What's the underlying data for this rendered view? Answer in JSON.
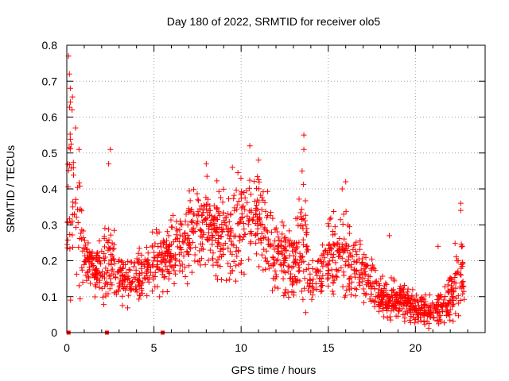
{
  "chart_data": {
    "type": "scatter",
    "title": "Day 180 of 2022, SRMTID for receiver olo5",
    "xlabel": "GPS time / hours",
    "ylabel": "SRMTID / TECUs",
    "xlim": [
      0,
      24
    ],
    "ylim": [
      0,
      0.8
    ],
    "xticks": [
      0,
      5,
      10,
      15,
      20
    ],
    "yticks": [
      0,
      0.1,
      0.2,
      0.3,
      0.4,
      0.5,
      0.6,
      0.7,
      0.8
    ],
    "grid": true,
    "marker": "plus",
    "color": "#ff0000",
    "zero_markers": [
      0.1,
      2.3,
      5.5
    ],
    "envelope": [
      {
        "x": 0.0,
        "mean": 0.22,
        "spread": 0.1
      },
      {
        "x": 0.1,
        "mean": 0.4,
        "spread": 0.18
      },
      {
        "x": 0.25,
        "mean": 0.45,
        "spread": 0.2
      },
      {
        "x": 0.5,
        "mean": 0.3,
        "spread": 0.15
      },
      {
        "x": 0.8,
        "mean": 0.33,
        "spread": 0.15
      },
      {
        "x": 1.0,
        "mean": 0.2,
        "spread": 0.06
      },
      {
        "x": 2.0,
        "mean": 0.16,
        "spread": 0.05
      },
      {
        "x": 2.4,
        "mean": 0.22,
        "spread": 0.12
      },
      {
        "x": 3.0,
        "mean": 0.14,
        "spread": 0.05
      },
      {
        "x": 4.0,
        "mean": 0.15,
        "spread": 0.05
      },
      {
        "x": 5.0,
        "mean": 0.19,
        "spread": 0.06
      },
      {
        "x": 6.0,
        "mean": 0.22,
        "spread": 0.07
      },
      {
        "x": 7.0,
        "mean": 0.27,
        "spread": 0.08
      },
      {
        "x": 8.0,
        "mean": 0.31,
        "spread": 0.09
      },
      {
        "x": 9.0,
        "mean": 0.27,
        "spread": 0.09
      },
      {
        "x": 10.0,
        "mean": 0.3,
        "spread": 0.1
      },
      {
        "x": 11.0,
        "mean": 0.31,
        "spread": 0.1
      },
      {
        "x": 12.0,
        "mean": 0.22,
        "spread": 0.08
      },
      {
        "x": 13.0,
        "mean": 0.17,
        "spread": 0.07
      },
      {
        "x": 13.6,
        "mean": 0.3,
        "spread": 0.14
      },
      {
        "x": 14.0,
        "mean": 0.13,
        "spread": 0.05
      },
      {
        "x": 15.0,
        "mean": 0.2,
        "spread": 0.07
      },
      {
        "x": 16.0,
        "mean": 0.22,
        "spread": 0.09
      },
      {
        "x": 17.0,
        "mean": 0.17,
        "spread": 0.06
      },
      {
        "x": 18.0,
        "mean": 0.1,
        "spread": 0.04
      },
      {
        "x": 19.0,
        "mean": 0.09,
        "spread": 0.04
      },
      {
        "x": 20.0,
        "mean": 0.07,
        "spread": 0.03
      },
      {
        "x": 21.0,
        "mean": 0.06,
        "spread": 0.03
      },
      {
        "x": 22.0,
        "mean": 0.09,
        "spread": 0.05
      },
      {
        "x": 22.6,
        "mean": 0.18,
        "spread": 0.1
      },
      {
        "x": 22.8,
        "mean": 0.12,
        "spread": 0.05
      }
    ],
    "peaks": [
      {
        "x": 0.1,
        "y": 0.77
      },
      {
        "x": 0.15,
        "y": 0.72
      },
      {
        "x": 0.2,
        "y": 0.68
      },
      {
        "x": 0.3,
        "y": 0.62
      },
      {
        "x": 0.5,
        "y": 0.57
      },
      {
        "x": 0.7,
        "y": 0.51
      },
      {
        "x": 2.5,
        "y": 0.51
      },
      {
        "x": 2.4,
        "y": 0.47
      },
      {
        "x": 10.5,
        "y": 0.52
      },
      {
        "x": 8.0,
        "y": 0.47
      },
      {
        "x": 9.5,
        "y": 0.46
      },
      {
        "x": 11.0,
        "y": 0.48
      },
      {
        "x": 13.6,
        "y": 0.55
      },
      {
        "x": 13.6,
        "y": 0.51
      },
      {
        "x": 13.5,
        "y": 0.45
      },
      {
        "x": 15.8,
        "y": 0.4
      },
      {
        "x": 16.0,
        "y": 0.42
      },
      {
        "x": 22.6,
        "y": 0.36
      },
      {
        "x": 22.6,
        "y": 0.34
      },
      {
        "x": 18.5,
        "y": 0.27
      },
      {
        "x": 21.3,
        "y": 0.24
      }
    ]
  }
}
